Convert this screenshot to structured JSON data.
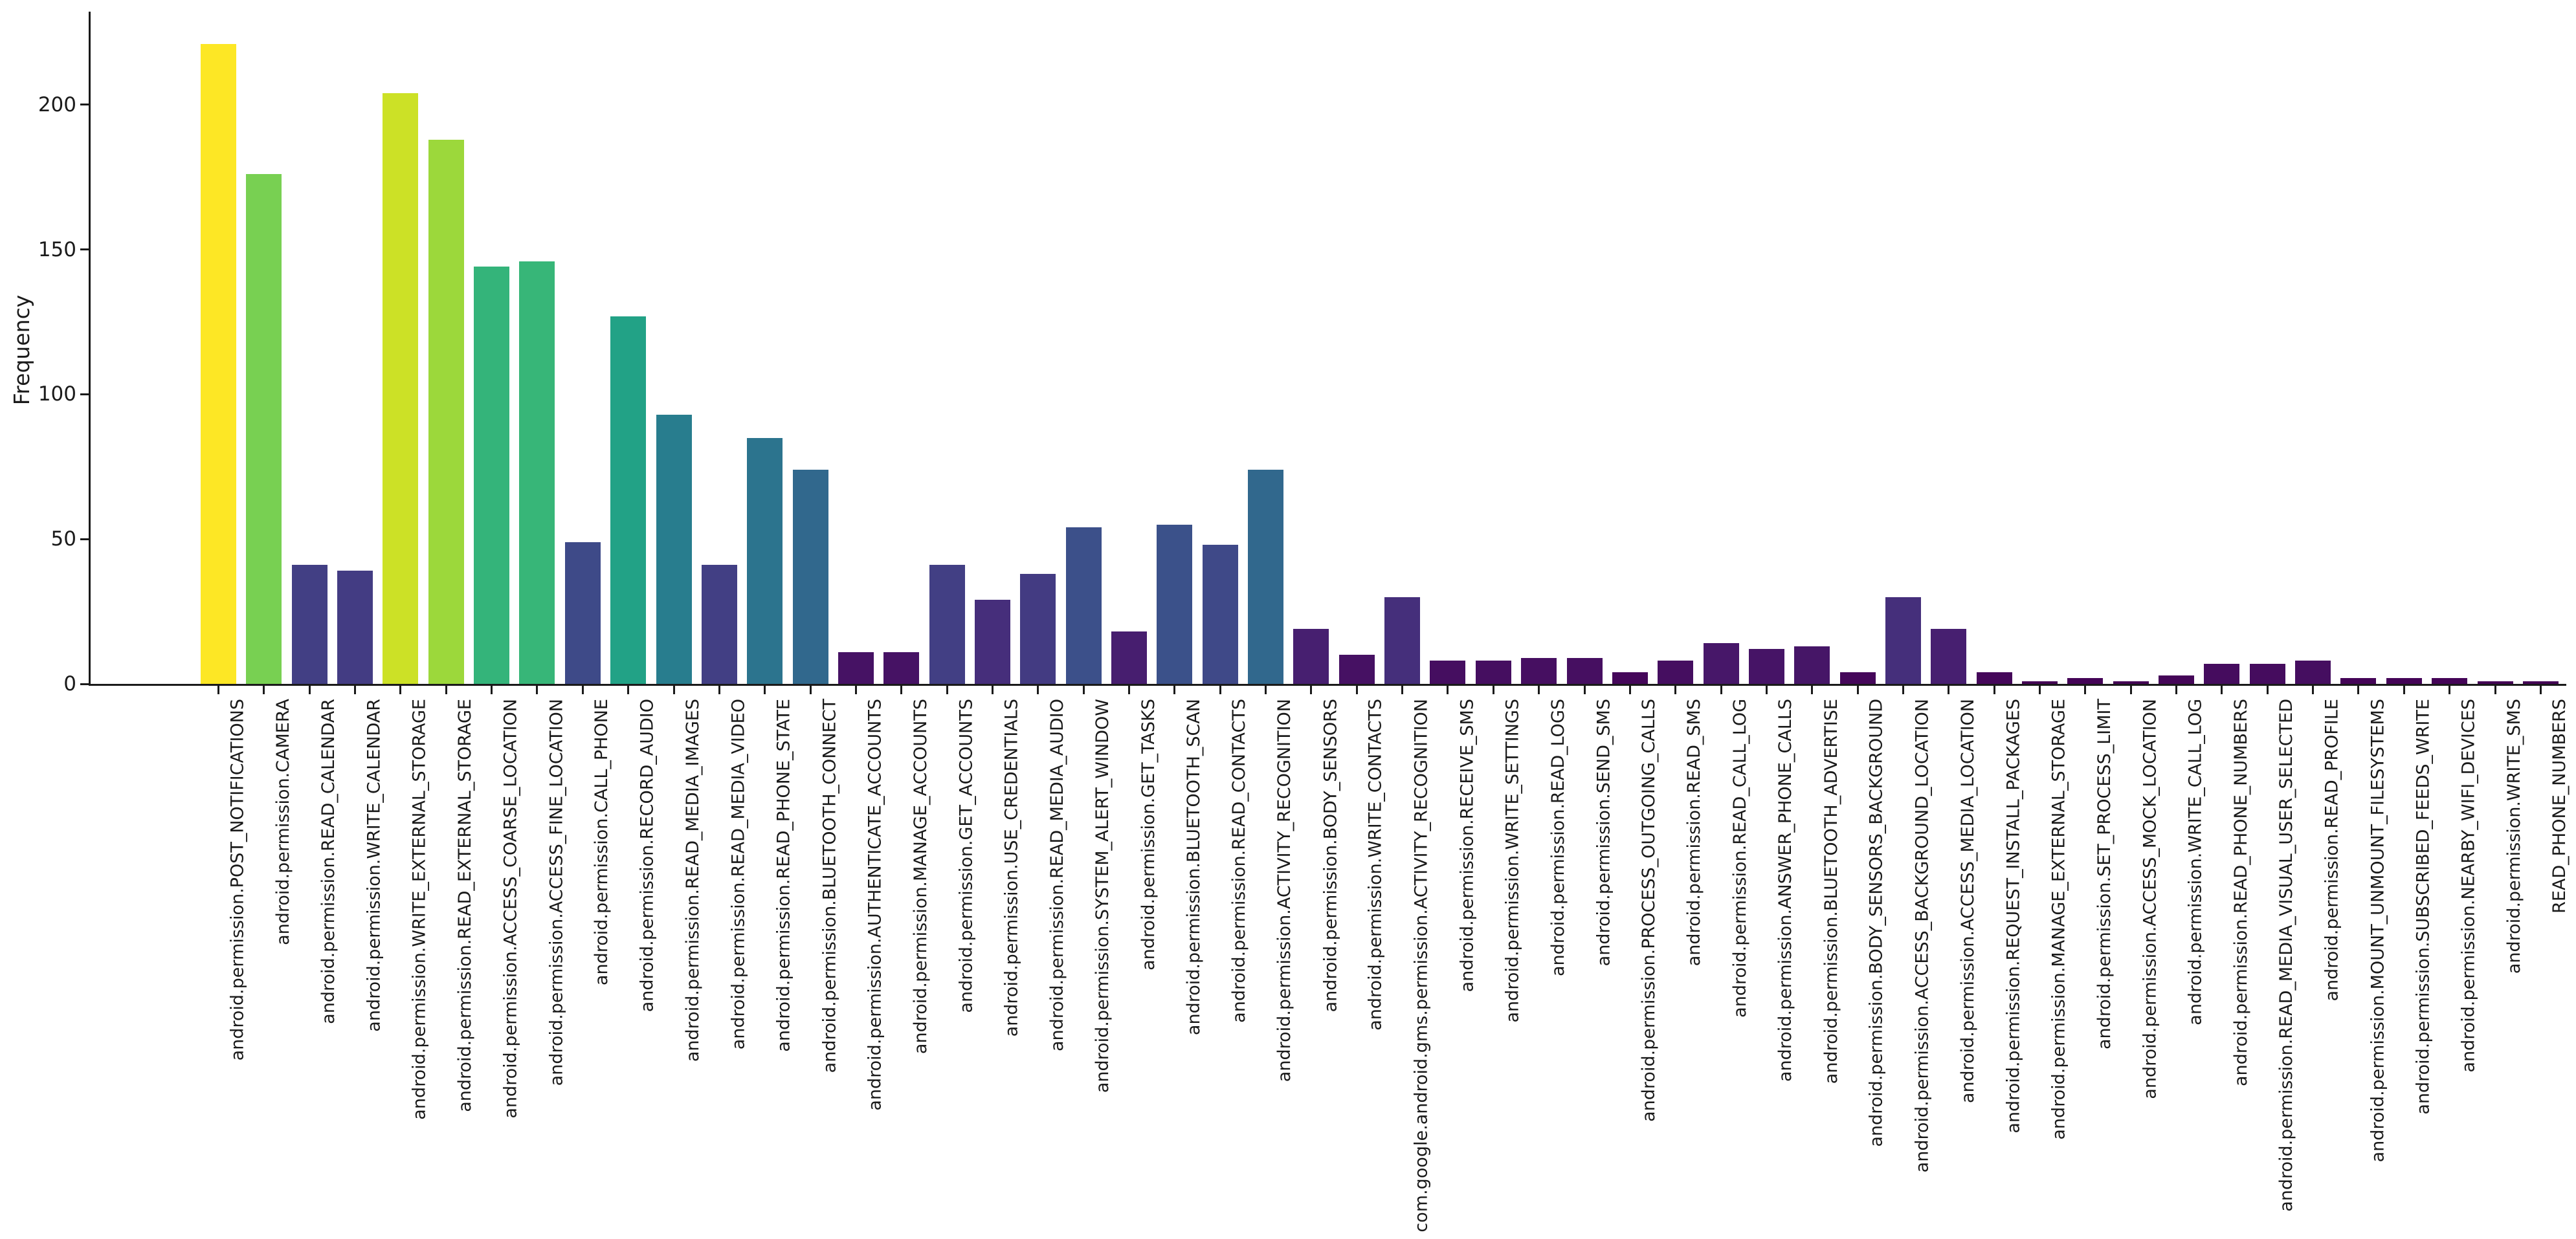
{
  "chart_data": {
    "type": "bar",
    "title": "",
    "xlabel": "",
    "ylabel": "Frequency",
    "ylim": [
      0,
      230
    ],
    "yticks": [
      0,
      50,
      100,
      150,
      200
    ],
    "grid": false,
    "legend": "none",
    "colormap": "viridis",
    "color_scale_max": 221,
    "viridis_stops": [
      "#440154",
      "#482475",
      "#414487",
      "#355f8d",
      "#2a788e",
      "#21918c",
      "#22a884",
      "#44bf70",
      "#7ad151",
      "#bddf26",
      "#fde725"
    ],
    "categories": [
      "android.permission.POST_NOTIFICATIONS",
      "android.permission.CAMERA",
      "android.permission.READ_CALENDAR",
      "android.permission.WRITE_CALENDAR",
      "android.permission.WRITE_EXTERNAL_STORAGE",
      "android.permission.READ_EXTERNAL_STORAGE",
      "android.permission.ACCESS_COARSE_LOCATION",
      "android.permission.ACCESS_FINE_LOCATION",
      "android.permission.CALL_PHONE",
      "android.permission.RECORD_AUDIO",
      "android.permission.READ_MEDIA_IMAGES",
      "android.permission.READ_MEDIA_VIDEO",
      "android.permission.READ_PHONE_STATE",
      "android.permission.BLUETOOTH_CONNECT",
      "android.permission.AUTHENTICATE_ACCOUNTS",
      "android.permission.MANAGE_ACCOUNTS",
      "android.permission.GET_ACCOUNTS",
      "android.permission.USE_CREDENTIALS",
      "android.permission.READ_MEDIA_AUDIO",
      "android.permission.SYSTEM_ALERT_WINDOW",
      "android.permission.GET_TASKS",
      "android.permission.BLUETOOTH_SCAN",
      "android.permission.READ_CONTACTS",
      "android.permission.ACTIVITY_RECOGNITION",
      "android.permission.BODY_SENSORS",
      "android.permission.WRITE_CONTACTS",
      "com.google.android.gms.permission.ACTIVITY_RECOGNITION",
      "android.permission.RECEIVE_SMS",
      "android.permission.WRITE_SETTINGS",
      "android.permission.READ_LOGS",
      "android.permission.SEND_SMS",
      "android.permission.PROCESS_OUTGOING_CALLS",
      "android.permission.READ_SMS",
      "android.permission.READ_CALL_LOG",
      "android.permission.ANSWER_PHONE_CALLS",
      "android.permission.BLUETOOTH_ADVERTISE",
      "android.permission.BODY_SENSORS_BACKGROUND",
      "android.permission.ACCESS_BACKGROUND_LOCATION",
      "android.permission.ACCESS_MEDIA_LOCATION",
      "android.permission.REQUEST_INSTALL_PACKAGES",
      "android.permission.MANAGE_EXTERNAL_STORAGE",
      "android.permission.SET_PROCESS_LIMIT",
      "android.permission.ACCESS_MOCK_LOCATION",
      "android.permission.WRITE_CALL_LOG",
      "android.permission.READ_PHONE_NUMBERS",
      "android.permission.READ_MEDIA_VISUAL_USER_SELECTED",
      "android.permission.READ_PROFILE",
      "android.permission.MOUNT_UNMOUNT_FILESYSTEMS",
      "android.permission.SUBSCRIBED_FEEDS_WRITE",
      "android.permission.NEARBY_WIFI_DEVICES",
      "android.permission.WRITE_SMS",
      "READ_PHONE_NUMBERS"
    ],
    "values": [
      221,
      176,
      41,
      39,
      204,
      188,
      144,
      146,
      49,
      127,
      93,
      41,
      85,
      74,
      11,
      11,
      41,
      29,
      38,
      54,
      18,
      55,
      48,
      74,
      19,
      10,
      30,
      8,
      8,
      9,
      9,
      4,
      8,
      14,
      12,
      13,
      4,
      30,
      19,
      4,
      1,
      2,
      1,
      3,
      7,
      7,
      8,
      2,
      2,
      2,
      1,
      1
    ]
  }
}
